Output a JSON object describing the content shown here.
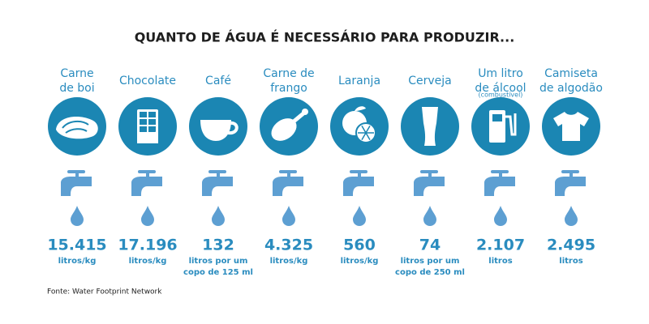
{
  "title": "QUANTO DE ÁGUA É NECESSÁRIO PARA PRODUZIR...",
  "items": [
    {
      "name": [
        "Carne",
        "de boi"
      ],
      "value": "15.415",
      "unit": [
        "litros/kg"
      ]
    },
    {
      "name": [
        "Chocolate"
      ],
      "value": "17.196",
      "unit": [
        "litros/kg"
      ]
    },
    {
      "name": [
        "Café"
      ],
      "value": "132",
      "unit": [
        "litros por um",
        "copo de 125 ml"
      ]
    },
    {
      "name": [
        "Carne de",
        "frango"
      ],
      "value": "4.325",
      "unit": [
        "litros/kg"
      ]
    },
    {
      "name": [
        "Laranja"
      ],
      "value": "560",
      "unit": [
        "litros/kg"
      ]
    },
    {
      "name": [
        "Cerveja"
      ],
      "value": "74",
      "unit": [
        "litros por um",
        "copo de 250 ml"
      ]
    },
    {
      "name": [
        "Um litro",
        "de álcool"
      ],
      "note": "(combustível)",
      "value": "2.107",
      "unit": [
        "litros"
      ]
    },
    {
      "name": [
        "Camiseta",
        "de algodão"
      ],
      "value": "2.495",
      "unit": [
        "litros"
      ]
    }
  ],
  "source": "Fonte: Water Footprint Network"
}
